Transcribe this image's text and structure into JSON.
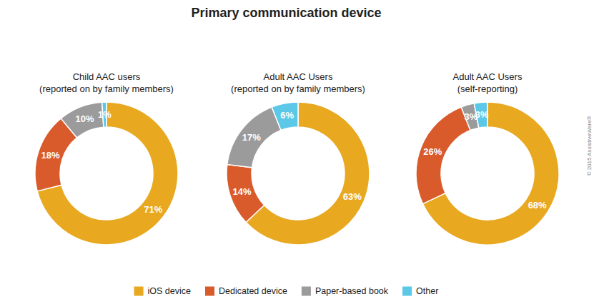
{
  "title": "Primary communication device",
  "annotations": [
    "© 2015 AssistiveWare®"
  ],
  "legend": "bottom",
  "chart_data": [
    {
      "type": "pie",
      "subtitle": "Child AAC users\n(reported on by family members)",
      "categories": [
        "iOS device",
        "Dedicated device",
        "Paper-based book",
        "Other"
      ],
      "values": [
        71,
        18,
        10,
        1
      ],
      "value_labels": [
        "71%",
        "18%",
        "10%",
        "1%"
      ],
      "colors": [
        "#E8A820",
        "#D95B2B",
        "#9B9B9B",
        "#5BC8E8"
      ],
      "data_labels": true
    },
    {
      "type": "pie",
      "subtitle": "Adult AAC Users\n(reported on by family members)",
      "categories": [
        "iOS device",
        "Dedicated device",
        "Paper-based book",
        "Other"
      ],
      "values": [
        63,
        14,
        17,
        6
      ],
      "value_labels": [
        "63%",
        "14%",
        "17%",
        "6%"
      ],
      "colors": [
        "#E8A820",
        "#D95B2B",
        "#9B9B9B",
        "#5BC8E8"
      ],
      "data_labels": true
    },
    {
      "type": "pie",
      "subtitle": "Adult AAC Users\n(self-reporting)",
      "categories": [
        "iOS device",
        "Dedicated device",
        "Paper-based book",
        "Other"
      ],
      "values": [
        68,
        26,
        3,
        3
      ],
      "value_labels": [
        "68%",
        "26%",
        "3%",
        "3%"
      ],
      "colors": [
        "#E8A820",
        "#D95B2B",
        "#9B9B9B",
        "#5BC8E8"
      ],
      "data_labels": true
    }
  ]
}
